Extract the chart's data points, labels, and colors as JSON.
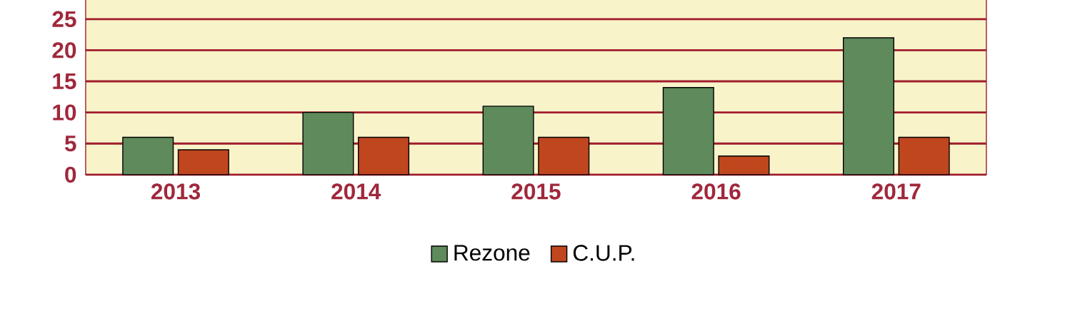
{
  "chart_data": {
    "type": "bar",
    "categories": [
      "2013",
      "2014",
      "2015",
      "2016",
      "2017"
    ],
    "series": [
      {
        "name": "Rezone",
        "color": "#5f8a5c",
        "values": [
          6,
          10,
          11,
          14,
          22
        ]
      },
      {
        "name": "C.U.P.",
        "color": "#c0461e",
        "values": [
          4,
          6,
          6,
          3,
          6
        ]
      }
    ],
    "ylim": [
      0,
      30
    ],
    "yticks": [
      0,
      5,
      10,
      15,
      20,
      25
    ],
    "grid": "y",
    "legend": "bottom"
  }
}
